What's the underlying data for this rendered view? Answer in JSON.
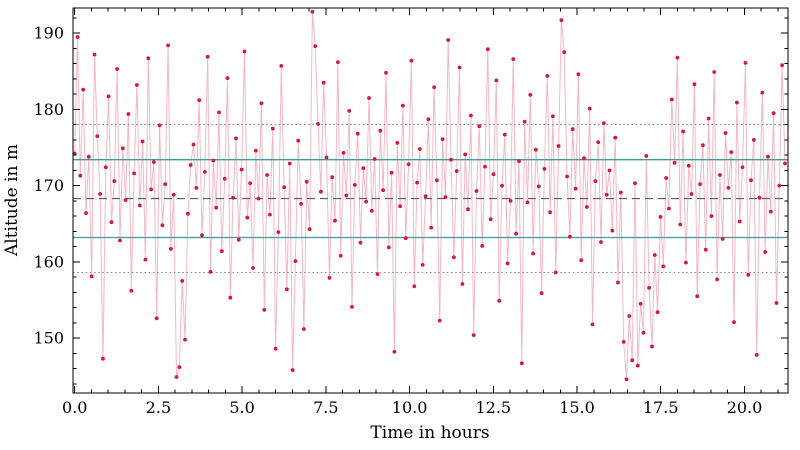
{
  "figure": {
    "background": "#ffffff",
    "spine_color": "#000000"
  },
  "chart_data": {
    "type": "scatter",
    "title": "",
    "xlabel": "Time in hours",
    "ylabel": "Altitude in m",
    "xlim": [
      -0.05,
      21.3
    ],
    "ylim": [
      142.8,
      193.3
    ],
    "grid": false,
    "x_ticks": {
      "values": [
        0,
        2.5,
        5,
        7.5,
        10,
        12.5,
        15,
        17.5,
        20
      ],
      "labels": [
        "0.0",
        "2.5",
        "5.0",
        "7.5",
        "10.0",
        "12.5",
        "15.0",
        "17.5",
        "20.0"
      ],
      "minor_step": 0.5
    },
    "y_ticks": {
      "values": [
        150,
        160,
        170,
        180,
        190
      ],
      "labels": [
        "150",
        "160",
        "170",
        "180",
        "190"
      ],
      "minor_step": 2
    },
    "reference_lines": [
      {
        "name": "mean",
        "value": 168.3,
        "style": "dashed",
        "color": "#5A5A5A"
      },
      {
        "name": "mean-plus-std",
        "value": 173.4,
        "style": "solid",
        "color": "#3D9C9C"
      },
      {
        "name": "mean-minus-std",
        "value": 163.2,
        "style": "solid",
        "color": "#3D9C9C"
      },
      {
        "name": "mean-plus-2std",
        "value": 178.0,
        "style": "dotted",
        "color": "#8A8A8A"
      },
      {
        "name": "mean-minus-2std",
        "value": 158.6,
        "style": "dotted",
        "color": "#8A8A8A"
      }
    ],
    "series": [
      {
        "name": "altitude",
        "marker_color": "#DC143C",
        "line_color": "rgba(220,20,60,0.30)",
        "time": {
          "start": 0,
          "step": 0.0845,
          "unit": "hours"
        },
        "values": [
          174.2,
          189.5,
          171.3,
          182.6,
          166.4,
          173.8,
          158.1,
          187.2,
          176.5,
          168.9,
          147.3,
          172.4,
          181.7,
          165.2,
          170.6,
          185.3,
          162.8,
          174.9,
          168.1,
          179.4,
          156.2,
          171.6,
          183.2,
          167.4,
          175.8,
          160.3,
          186.7,
          169.5,
          173.1,
          152.6,
          177.9,
          164.8,
          170.2,
          188.4,
          161.7,
          168.8,
          144.9,
          146.2,
          157.5,
          149.8,
          166.3,
          172.7,
          175.4,
          169.7,
          181.2,
          163.5,
          171.8,
          186.9,
          158.7,
          173.3,
          167.1,
          179.6,
          161.4,
          170.9,
          184.1,
          155.3,
          168.4,
          176.2,
          162.9,
          172.1,
          187.6,
          165.8,
          170.3,
          159.2,
          174.6,
          168.3,
          180.8,
          153.7,
          171.4,
          166.2,
          177.5,
          148.6,
          163.9,
          185.7,
          169.8,
          156.4,
          172.9,
          145.8,
          160.1,
          175.9,
          167.6,
          151.2,
          170.5,
          164.3,
          192.8,
          188.3,
          178.1,
          169.2,
          183.5,
          173.7,
          157.9,
          171.1,
          165.4,
          186.2,
          160.8,
          174.3,
          168.7,
          179.8,
          154.1,
          170.1,
          176.8,
          162.5,
          172.3,
          167.9,
          181.5,
          166.7,
          173.5,
          158.4,
          177.2,
          169.4,
          184.8,
          161.9,
          171.7,
          148.2,
          175.6,
          167.3,
          180.5,
          163.1,
          172.8,
          186.4,
          156.8,
          170.4,
          174.8,
          159.6,
          168.6,
          178.7,
          164.5,
          182.9,
          170.7,
          152.3,
          176.1,
          168.5,
          189.1,
          173.4,
          160.6,
          171.9,
          185.5,
          157.1,
          174.1,
          166.9,
          179.2,
          150.4,
          169.3,
          177.8,
          162.1,
          172.5,
          187.9,
          165.6,
          171.5,
          183.8,
          154.9,
          170.0,
          176.7,
          159.8,
          168.0,
          186.6,
          163.7,
          173.2,
          146.7,
          178.4,
          167.8,
          181.9,
          161.1,
          174.7,
          169.9,
          155.9,
          172.2,
          184.4,
          166.5,
          179.1,
          158.6,
          175.2,
          191.7,
          187.5,
          171.2,
          163.3,
          177.4,
          169.6,
          184.6,
          160.2,
          173.6,
          167.2,
          180.1,
          151.8,
          170.6,
          175.7,
          162.6,
          178.2,
          168.8,
          172.0,
          164.1,
          176.3,
          157.3,
          169.1,
          149.5,
          144.6,
          152.9,
          147.1,
          170.3,
          146.4,
          154.5,
          150.7,
          173.9,
          156.6,
          148.9,
          160.9,
          153.4,
          165.9,
          159.4,
          171.0,
          167.0,
          181.3,
          173.0,
          186.8,
          164.9,
          177.1,
          159.9,
          172.6,
          168.9,
          183.3,
          155.5,
          170.2,
          175.3,
          161.6,
          178.8,
          166.0,
          184.9,
          157.7,
          171.4,
          163.0,
          176.9,
          169.7,
          174.4,
          152.1,
          180.9,
          165.3,
          172.4,
          186.1,
          158.3,
          170.7,
          176.0,
          147.8,
          168.4,
          182.2,
          161.3,
          173.8,
          166.6,
          179.5,
          154.6,
          170.0,
          185.8,
          172.9
        ]
      }
    ]
  }
}
